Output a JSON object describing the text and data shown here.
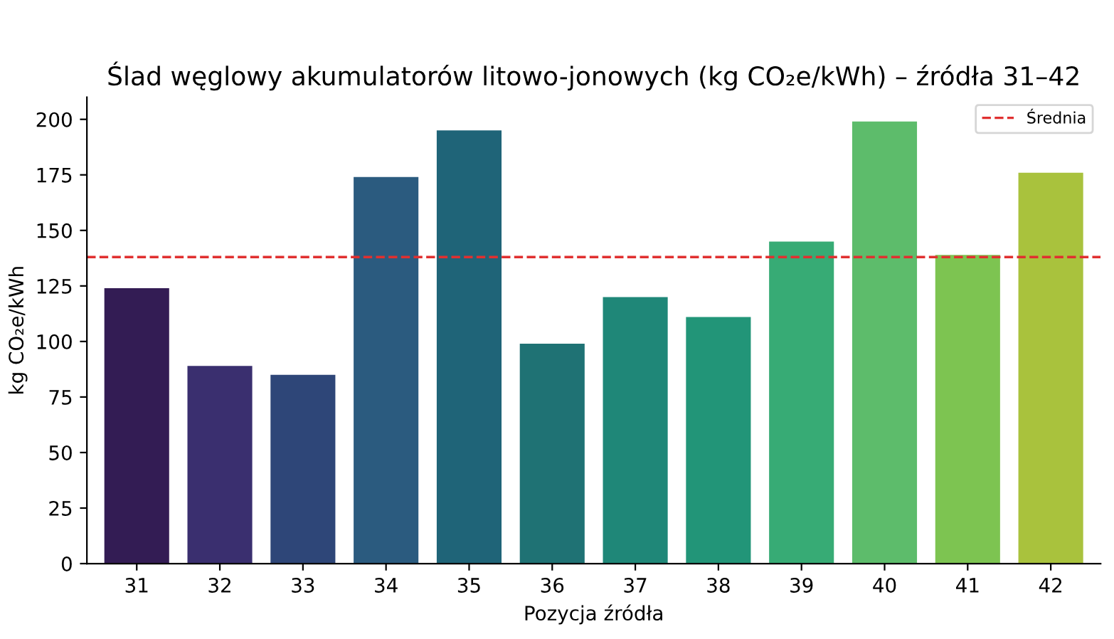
{
  "chart_data": {
    "type": "bar",
    "title": "Ślad węglowy akumulatorów litowo-jonowych (kg CO₂e/kWh) – źródła 31–42",
    "xlabel": "Pozycja źródła",
    "ylabel": "kg CO₂e/kWh",
    "categories": [
      "31",
      "32",
      "33",
      "34",
      "35",
      "36",
      "37",
      "38",
      "39",
      "40",
      "41",
      "42"
    ],
    "values": [
      124,
      89,
      85,
      174,
      195,
      99,
      120,
      111,
      145,
      199,
      139,
      176
    ],
    "colors": [
      "#331c54",
      "#3a2f6f",
      "#2e4678",
      "#2b5b7f",
      "#1f6478",
      "#1f7274",
      "#1f8778",
      "#229578",
      "#37ab75",
      "#5dbc6b",
      "#7dc451",
      "#a9c23d"
    ],
    "ylim": [
      0,
      210
    ],
    "yticks": [
      0,
      25,
      50,
      75,
      100,
      125,
      150,
      175,
      200
    ],
    "ref_lines": [
      {
        "axis": "y",
        "value": 138,
        "label": "Średnia",
        "color": "#e03030",
        "line_style": "dashed"
      }
    ],
    "legend": "top right",
    "grid": false
  }
}
